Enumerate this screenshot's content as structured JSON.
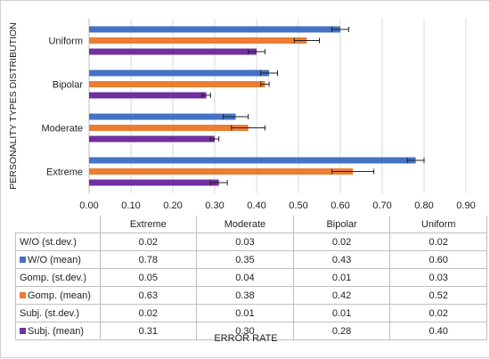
{
  "chart_data": {
    "type": "bar",
    "orientation": "horizontal",
    "categories": [
      "Extreme",
      "Moderate",
      "Bipolar",
      "Uniform"
    ],
    "series": [
      {
        "name": "W/O (mean)",
        "color": "#4472C4",
        "values": [
          0.78,
          0.35,
          0.43,
          0.6
        ],
        "stdev": [
          0.02,
          0.03,
          0.02,
          0.02
        ]
      },
      {
        "name": "Gomp. (mean)",
        "color": "#ED7D31",
        "values": [
          0.63,
          0.38,
          0.42,
          0.52
        ],
        "stdev": [
          0.05,
          0.04,
          0.01,
          0.03
        ]
      },
      {
        "name": "Subj. (mean)",
        "color": "#7030A0",
        "values": [
          0.31,
          0.3,
          0.28,
          0.4
        ],
        "stdev": [
          0.02,
          0.01,
          0.01,
          0.02
        ]
      }
    ],
    "xlim": [
      0,
      0.9
    ],
    "xticks": [
      "0.00",
      "0.10",
      "0.20",
      "0.30",
      "0.40",
      "0.50",
      "0.60",
      "0.70",
      "0.80",
      "0.90"
    ],
    "xlabel": "ERROR RATE",
    "ylabel": "PERSONALITY TYPES DISTRIBUTION",
    "grid": "vertical",
    "error_bars": true
  },
  "table": {
    "columns": [
      "Extreme",
      "Moderate",
      "Bipolar",
      "Uniform"
    ],
    "rows": [
      {
        "label": "W/O (st.dev.)",
        "values": [
          "0.02",
          "0.03",
          "0.02",
          "0.02"
        ]
      },
      {
        "label": "W/O (mean)",
        "swatch": "#4472C4",
        "values": [
          "0.78",
          "0.35",
          "0.43",
          "0.60"
        ]
      },
      {
        "label": "Gomp. (st.dev.)",
        "values": [
          "0.05",
          "0.04",
          "0.01",
          "0.03"
        ]
      },
      {
        "label": "Gomp. (mean)",
        "swatch": "#ED7D31",
        "values": [
          "0.63",
          "0.38",
          "0.42",
          "0.52"
        ]
      },
      {
        "label": "Subj. (st.dev.)",
        "values": [
          "0.02",
          "0.01",
          "0.01",
          "0.02"
        ]
      },
      {
        "label": "Subj. (mean)",
        "swatch": "#7030A0",
        "values": [
          "0.31",
          "0.30",
          "0.28",
          "0.40"
        ]
      }
    ]
  }
}
